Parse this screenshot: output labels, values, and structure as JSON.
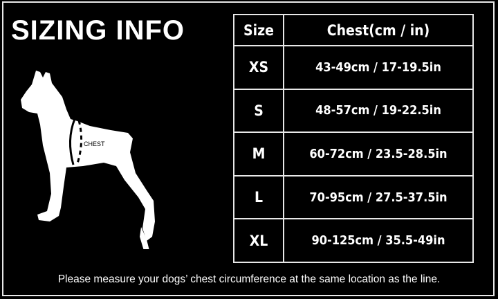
{
  "title": "SIZING INFO",
  "diagram_label": "CHEST",
  "table": {
    "headers": [
      "Size",
      "Chest(cm / in)"
    ],
    "rows": [
      {
        "size": "XS",
        "chest": "43-49cm / 17-19.5in"
      },
      {
        "size": "S",
        "chest": "48-57cm / 19-22.5in"
      },
      {
        "size": "M",
        "chest": "60-72cm / 23.5-28.5in"
      },
      {
        "size": "L",
        "chest": "70-95cm / 27.5-37.5in"
      },
      {
        "size": "XL",
        "chest": "90-125cm / 35.5-49in"
      }
    ]
  },
  "note": "Please measure your dogs’  chest circumference at the same location as the line.",
  "colors": {
    "background": "#000000",
    "foreground": "#ffffff"
  }
}
